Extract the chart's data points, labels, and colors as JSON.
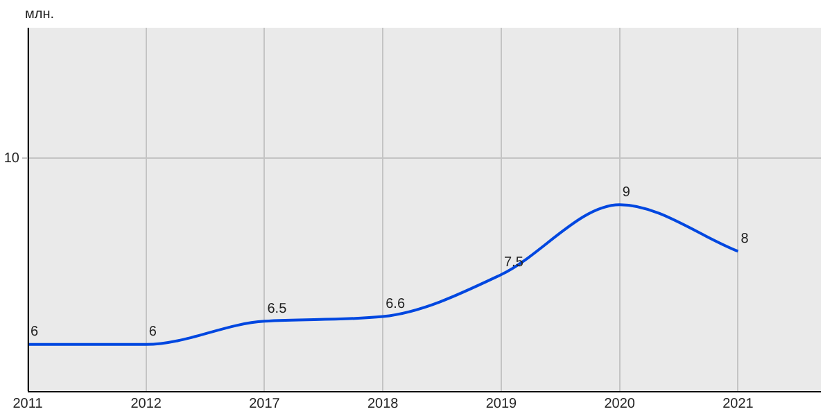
{
  "chart_data": {
    "type": "line",
    "ylabel": "млн.",
    "categories": [
      "2011",
      "2012",
      "2017",
      "2018",
      "2019",
      "2020",
      "2021"
    ],
    "series": [
      {
        "color": "#0047e0",
        "values": [
          6,
          6,
          6.5,
          6.6,
          7.5,
          9,
          8
        ]
      }
    ],
    "ylim": [
      5,
      12.8
    ],
    "ref_lines": [
      {
        "axis": "y",
        "value": 10,
        "label": "10",
        "color": "#c4c4c4"
      }
    ],
    "grid": "x",
    "data_labels": true,
    "marker": "none",
    "line_style": "solid",
    "legend": false
  }
}
